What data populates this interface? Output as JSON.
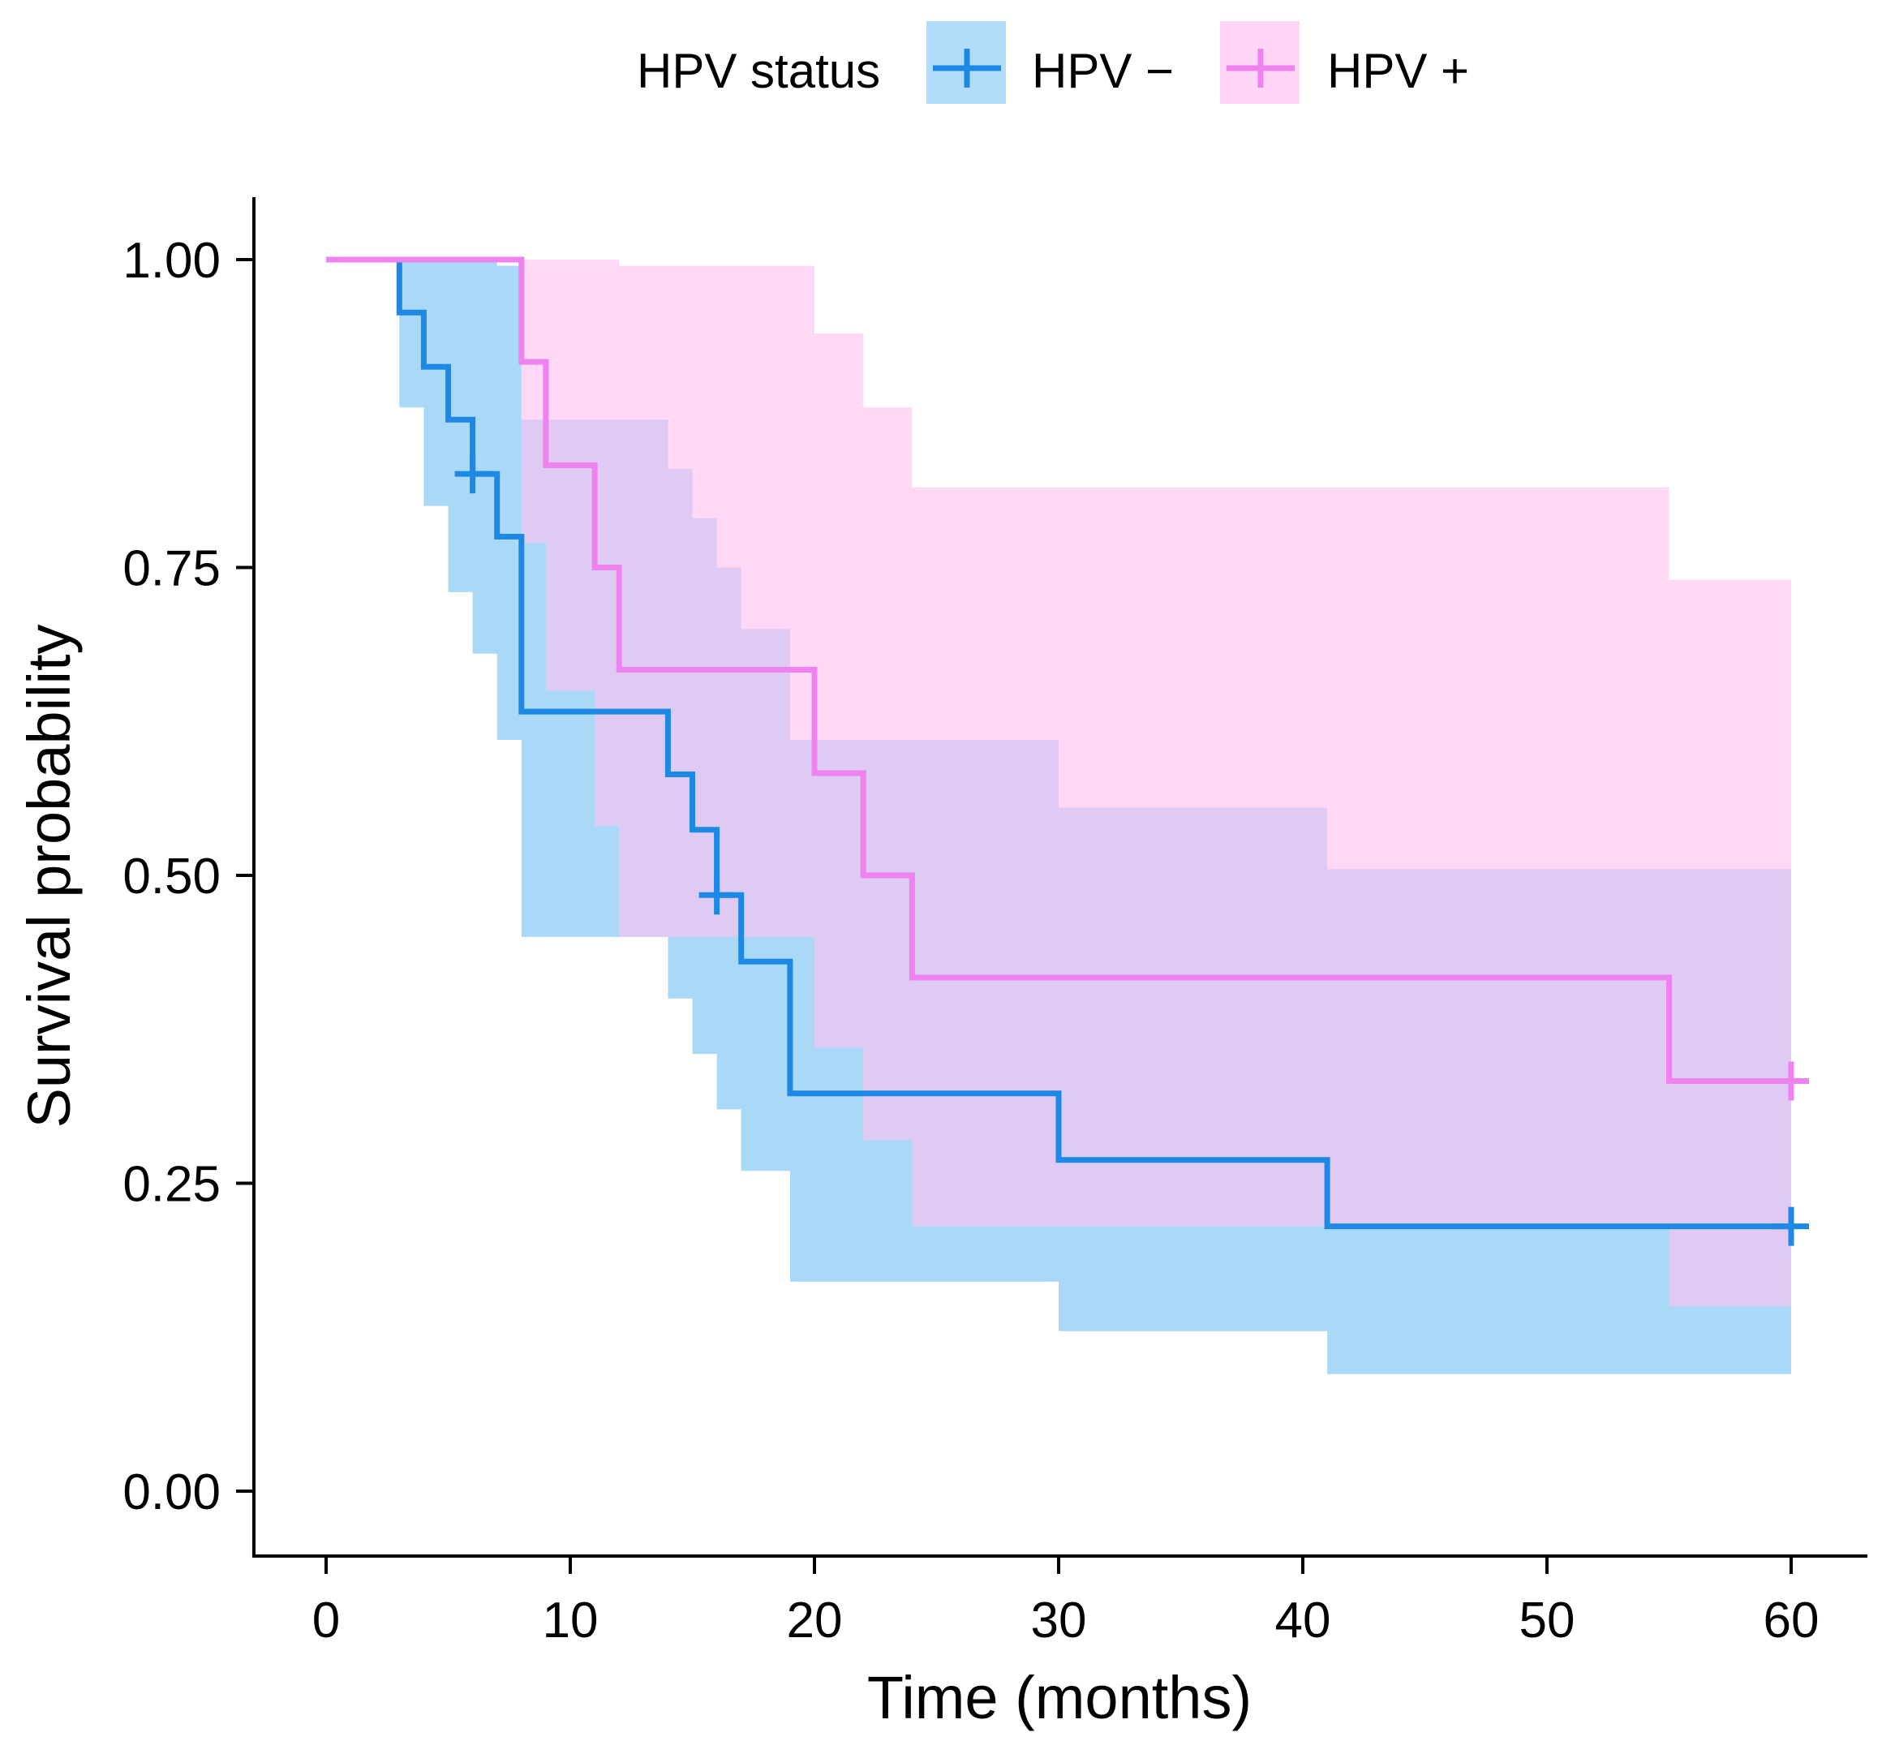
{
  "chart_data": {
    "type": "line",
    "subtype": "kaplan-meier step",
    "xlabel": "Time (months)",
    "ylabel": "Survival probability",
    "xlim": [
      -3,
      63
    ],
    "ylim": [
      -0.05,
      1.05
    ],
    "xticks": [
      0,
      10,
      20,
      30,
      40,
      50,
      60
    ],
    "yticks": [
      0,
      0.25,
      0.5,
      0.75,
      1.0
    ],
    "xtick_labels": [
      "0",
      "10",
      "20",
      "30",
      "40",
      "50",
      "60"
    ],
    "ytick_labels": [
      "0.00",
      "0.25",
      "0.50",
      "0.75",
      "1.00"
    ],
    "grid": false,
    "legend": {
      "title": "HPV status",
      "position": "top",
      "entries": [
        "HPV −",
        "HPV +"
      ]
    },
    "series": [
      {
        "name": "HPV −",
        "color": "#1E88E5",
        "band_color": "#56B4F1",
        "steps": [
          [
            0,
            1.0
          ],
          [
            3,
            0.957
          ],
          [
            4,
            0.913
          ],
          [
            5,
            0.87
          ],
          [
            6,
            0.826
          ],
          [
            7,
            0.775
          ],
          [
            8,
            0.633
          ],
          [
            14,
            0.582
          ],
          [
            15,
            0.537
          ],
          [
            16,
            0.484
          ],
          [
            17,
            0.43
          ],
          [
            19,
            0.323
          ],
          [
            30,
            0.269
          ],
          [
            41,
            0.215
          ],
          [
            60,
            0.215
          ]
        ],
        "lower": [
          [
            0,
            1.0
          ],
          [
            3,
            0.88
          ],
          [
            4,
            0.8
          ],
          [
            5,
            0.73
          ],
          [
            6,
            0.68
          ],
          [
            7,
            0.61
          ],
          [
            8,
            0.45
          ],
          [
            14,
            0.4
          ],
          [
            15,
            0.355
          ],
          [
            16,
            0.31
          ],
          [
            17,
            0.26
          ],
          [
            19,
            0.17
          ],
          [
            30,
            0.13
          ],
          [
            41,
            0.095
          ],
          [
            60,
            0.095
          ]
        ],
        "upper": [
          [
            0,
            1.0
          ],
          [
            3,
            1.0
          ],
          [
            4,
            1.0
          ],
          [
            5,
            1.0
          ],
          [
            6,
            1.0
          ],
          [
            7,
            0.995
          ],
          [
            8,
            0.87
          ],
          [
            14,
            0.83
          ],
          [
            15,
            0.79
          ],
          [
            16,
            0.75
          ],
          [
            17,
            0.7
          ],
          [
            19,
            0.61
          ],
          [
            30,
            0.555
          ],
          [
            41,
            0.505
          ],
          [
            60,
            0.505
          ]
        ],
        "censor_times": [
          6,
          16,
          60
        ],
        "censor_values": [
          0.826,
          0.484,
          0.215
        ]
      },
      {
        "name": "HPV +",
        "color": "#EE82EE",
        "band_color": "#FFC0F0",
        "steps": [
          [
            0,
            1.0
          ],
          [
            8,
            0.917
          ],
          [
            9,
            0.833
          ],
          [
            11,
            0.75
          ],
          [
            12,
            0.667
          ],
          [
            20,
            0.583
          ],
          [
            22,
            0.5
          ],
          [
            24,
            0.417
          ],
          [
            55,
            0.333
          ],
          [
            60,
            0.333
          ]
        ],
        "lower": [
          [
            0,
            1.0
          ],
          [
            8,
            0.77
          ],
          [
            9,
            0.65
          ],
          [
            11,
            0.54
          ],
          [
            12,
            0.45
          ],
          [
            20,
            0.36
          ],
          [
            22,
            0.285
          ],
          [
            24,
            0.215
          ],
          [
            55,
            0.15
          ],
          [
            60,
            0.15
          ]
        ],
        "upper": [
          [
            0,
            1.0
          ],
          [
            8,
            1.0
          ],
          [
            12,
            0.995
          ],
          [
            20,
            0.94
          ],
          [
            22,
            0.88
          ],
          [
            24,
            0.815
          ],
          [
            55,
            0.74
          ],
          [
            60,
            0.74
          ]
        ],
        "censor_times": [
          60
        ],
        "censor_values": [
          0.333
        ]
      }
    ]
  }
}
